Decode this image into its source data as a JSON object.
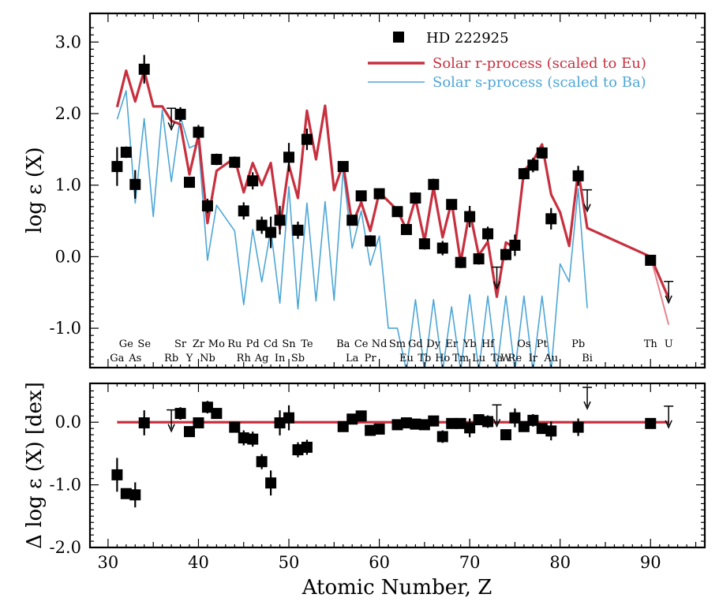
{
  "chart_data": [
    {
      "type": "scatter",
      "panel": "top",
      "ylabel": "log ε (X)",
      "xlim": [
        28,
        96
      ],
      "ylim": [
        -1.55,
        3.4
      ],
      "yticks": [
        3.0,
        2.0,
        1.0,
        0.0,
        -1.0
      ],
      "ytick_labels": [
        "3.0",
        "2.0",
        "1.0",
        "0.0",
        "-1.0"
      ],
      "legend": {
        "placement": "top-right",
        "entries": [
          {
            "label": "HD 222925",
            "color": "#000000",
            "marker": "square"
          },
          {
            "label": "Solar r-process (scaled to Eu)",
            "color": "#c7303f",
            "marker": "line-thick"
          },
          {
            "label": "Solar s-process (scaled to Ba)",
            "color": "#4ea6d6",
            "marker": "line-thin"
          }
        ]
      },
      "element_labels_top": [
        {
          "z": 32,
          "label": "Ge"
        },
        {
          "z": 34,
          "label": "Se"
        },
        {
          "z": 38,
          "label": "Sr"
        },
        {
          "z": 40,
          "label": "Zr"
        },
        {
          "z": 42,
          "label": "Mo"
        },
        {
          "z": 44,
          "label": "Ru"
        },
        {
          "z": 46,
          "label": "Pd"
        },
        {
          "z": 48,
          "label": "Cd"
        },
        {
          "z": 50,
          "label": "Sn"
        },
        {
          "z": 52,
          "label": "Te"
        },
        {
          "z": 56,
          "label": "Ba"
        },
        {
          "z": 58,
          "label": "Ce"
        },
        {
          "z": 60,
          "label": "Nd"
        },
        {
          "z": 62,
          "label": "Sm"
        },
        {
          "z": 64,
          "label": "Gd"
        },
        {
          "z": 66,
          "label": "Dy"
        },
        {
          "z": 68,
          "label": "Er"
        },
        {
          "z": 70,
          "label": "Yb"
        },
        {
          "z": 72,
          "label": "Hf"
        },
        {
          "z": 76,
          "label": "Os"
        },
        {
          "z": 78,
          "label": "Pt"
        },
        {
          "z": 82,
          "label": "Pb"
        },
        {
          "z": 90,
          "label": "Th"
        },
        {
          "z": 92,
          "label": "U"
        }
      ],
      "element_labels_bottom": [
        {
          "z": 31,
          "label": "Ga"
        },
        {
          "z": 33,
          "label": "As"
        },
        {
          "z": 37,
          "label": "Rb"
        },
        {
          "z": 39,
          "label": "Y"
        },
        {
          "z": 41,
          "label": "Nb"
        },
        {
          "z": 45,
          "label": "Rh"
        },
        {
          "z": 47,
          "label": "Ag"
        },
        {
          "z": 49,
          "label": "In"
        },
        {
          "z": 51,
          "label": "Sb"
        },
        {
          "z": 57,
          "label": "La"
        },
        {
          "z": 59,
          "label": "Pr"
        },
        {
          "z": 63,
          "label": "Eu"
        },
        {
          "z": 65,
          "label": "Tb"
        },
        {
          "z": 67,
          "label": "Ho"
        },
        {
          "z": 69,
          "label": "Tm"
        },
        {
          "z": 71,
          "label": "Lu"
        },
        {
          "z": 73,
          "label": "Ta"
        },
        {
          "z": 74,
          "label": "W"
        },
        {
          "z": 75,
          "label": "Re"
        },
        {
          "z": 77,
          "label": "Ir"
        },
        {
          "z": 79,
          "label": "Au"
        },
        {
          "z": 83,
          "label": "Bi"
        }
      ],
      "observed": [
        {
          "z": 31,
          "y": 1.26,
          "err": 0.27
        },
        {
          "z": 32,
          "y": 1.46,
          "err": 0.08
        },
        {
          "z": 33,
          "y": 1.01,
          "err": 0.2
        },
        {
          "z": 34,
          "y": 2.62,
          "err": 0.2
        },
        {
          "z": 37,
          "y": 1.92,
          "limit": "upper"
        },
        {
          "z": 38,
          "y": 1.99,
          "err": 0.1
        },
        {
          "z": 39,
          "y": 1.04,
          "err": 0.07
        },
        {
          "z": 40,
          "y": 1.74,
          "err": 0.1
        },
        {
          "z": 41,
          "y": 0.71,
          "err": 0.1
        },
        {
          "z": 42,
          "y": 1.36,
          "err": 0.08
        },
        {
          "z": 44,
          "y": 1.32,
          "err": 0.08
        },
        {
          "z": 45,
          "y": 0.64,
          "err": 0.12
        },
        {
          "z": 46,
          "y": 1.06,
          "err": 0.12
        },
        {
          "z": 47,
          "y": 0.44,
          "err": 0.12
        },
        {
          "z": 48,
          "y": 0.34,
          "err": 0.22
        },
        {
          "z": 49,
          "y": 0.51,
          "err": 0.2
        },
        {
          "z": 50,
          "y": 1.39,
          "err": 0.2
        },
        {
          "z": 51,
          "y": 0.37,
          "err": 0.12
        },
        {
          "z": 52,
          "y": 1.64,
          "err": 0.15
        },
        {
          "z": 56,
          "y": 1.26,
          "err": 0.06
        },
        {
          "z": 57,
          "y": 0.51,
          "err": 0.06
        },
        {
          "z": 58,
          "y": 0.85,
          "err": 0.06
        },
        {
          "z": 59,
          "y": 0.22,
          "err": 0.08
        },
        {
          "z": 60,
          "y": 0.88,
          "err": 0.06
        },
        {
          "z": 62,
          "y": 0.63,
          "err": 0.06
        },
        {
          "z": 63,
          "y": 0.38,
          "err": 0.06
        },
        {
          "z": 64,
          "y": 0.82,
          "err": 0.08
        },
        {
          "z": 65,
          "y": 0.18,
          "err": 0.08
        },
        {
          "z": 66,
          "y": 1.01,
          "err": 0.08
        },
        {
          "z": 67,
          "y": 0.12,
          "err": 0.1
        },
        {
          "z": 68,
          "y": 0.73,
          "err": 0.06
        },
        {
          "z": 69,
          "y": -0.08,
          "err": 0.08
        },
        {
          "z": 70,
          "y": 0.56,
          "err": 0.15
        },
        {
          "z": 71,
          "y": -0.03,
          "err": 0.08
        },
        {
          "z": 72,
          "y": 0.32,
          "err": 0.1
        },
        {
          "z": 73,
          "y": -0.3,
          "limit": "upper"
        },
        {
          "z": 74,
          "y": 0.03,
          "err": 0.08
        },
        {
          "z": 75,
          "y": 0.16,
          "err": 0.15
        },
        {
          "z": 76,
          "y": 1.16,
          "err": 0.08
        },
        {
          "z": 77,
          "y": 1.28,
          "err": 0.1
        },
        {
          "z": 78,
          "y": 1.45,
          "err": 0.08
        },
        {
          "z": 79,
          "y": 0.53,
          "err": 0.15
        },
        {
          "z": 82,
          "y": 1.13,
          "err": 0.14
        },
        {
          "z": 83,
          "y": 0.78,
          "limit": "upper"
        },
        {
          "z": 90,
          "y": -0.05,
          "err": 0.07
        },
        {
          "z": 92,
          "y": -0.5,
          "limit": "upper"
        }
      ],
      "solar_r": {
        "z": [
          31,
          32,
          33,
          34,
          35,
          36,
          37,
          38,
          39,
          40,
          41,
          42,
          44,
          45,
          46,
          47,
          48,
          49,
          50,
          51,
          52,
          53,
          54,
          55,
          56,
          57,
          58,
          59,
          60,
          62,
          63,
          64,
          65,
          66,
          67,
          68,
          69,
          70,
          71,
          72,
          73,
          74,
          75,
          76,
          77,
          78,
          79,
          80,
          81,
          82,
          83,
          90,
          92
        ],
        "y": [
          2.09,
          2.6,
          2.17,
          2.6,
          2.1,
          2.1,
          1.9,
          1.85,
          1.15,
          1.7,
          0.47,
          1.2,
          1.38,
          0.9,
          1.31,
          1.0,
          1.31,
          0.39,
          1.28,
          0.82,
          2.04,
          1.36,
          2.11,
          0.93,
          1.3,
          0.45,
          0.76,
          0.36,
          0.9,
          0.65,
          0.38,
          0.81,
          0.22,
          0.97,
          0.27,
          0.77,
          -0.08,
          0.64,
          0.02,
          0.21,
          -0.56,
          0.2,
          0.12,
          1.2,
          1.34,
          1.57,
          0.87,
          0.62,
          0.15,
          1.2,
          0.4,
          0.0,
          -0.58
        ],
        "extension": {
          "z": [
            90,
            92
          ],
          "y": [
            0.0,
            -0.95
          ]
        }
      },
      "solar_s": {
        "z": [
          31,
          32,
          33,
          34,
          35,
          36,
          37,
          38,
          39,
          40,
          41,
          42,
          44,
          45,
          46,
          47,
          48,
          49,
          50,
          51,
          52,
          53,
          54,
          55,
          56,
          57,
          58,
          59,
          60,
          61,
          62,
          63,
          64,
          65,
          66,
          67,
          68,
          69,
          70,
          71,
          72,
          73,
          74,
          75,
          76,
          77,
          78,
          79,
          80,
          81,
          82,
          83
        ],
        "y": [
          1.92,
          2.32,
          0.75,
          1.93,
          0.56,
          2.05,
          1.05,
          1.96,
          1.52,
          1.58,
          -0.05,
          0.72,
          0.36,
          -0.67,
          0.38,
          -0.35,
          0.38,
          -0.65,
          0.98,
          -0.73,
          0.75,
          -0.62,
          0.77,
          -0.61,
          1.21,
          0.12,
          0.64,
          -0.12,
          0.29,
          -1.0,
          -1.0,
          -1.6,
          -0.6,
          -1.6,
          -0.6,
          -1.6,
          -0.7,
          -1.6,
          -0.53,
          -1.6,
          -0.55,
          -1.6,
          -0.55,
          -1.6,
          -0.55,
          -1.6,
          -0.55,
          -1.6,
          -0.1,
          -0.35,
          0.95,
          -0.72
        ]
      }
    },
    {
      "type": "scatter",
      "panel": "bottom",
      "xlabel": "Atomic Number, Z",
      "ylabel": "Δ log ε (X) [dex]",
      "xlim": [
        28,
        96
      ],
      "ylim": [
        -2.0,
        0.62
      ],
      "yticks": [
        0.0,
        -1.0,
        -2.0
      ],
      "ytick_labels": [
        "0.0",
        "-1.0",
        "-2.0"
      ],
      "xticks": [
        30,
        40,
        50,
        60,
        70,
        80,
        90
      ],
      "xtick_labels": [
        "30",
        "40",
        "50",
        "60",
        "70",
        "80",
        "90"
      ],
      "reference_line": {
        "y": 0.0,
        "x": [
          31,
          92
        ],
        "color": "#c7303f"
      },
      "residuals": [
        {
          "z": 31,
          "y": -0.84,
          "err": 0.27
        },
        {
          "z": 32,
          "y": -1.14,
          "err": 0.08
        },
        {
          "z": 33,
          "y": -1.16,
          "err": 0.2
        },
        {
          "z": 34,
          "y": -0.01,
          "err": 0.2
        },
        {
          "z": 37,
          "y": 0.02,
          "limit": "upper"
        },
        {
          "z": 38,
          "y": 0.14,
          "err": 0.1
        },
        {
          "z": 39,
          "y": -0.15,
          "err": 0.08
        },
        {
          "z": 40,
          "y": -0.01,
          "err": 0.08
        },
        {
          "z": 41,
          "y": 0.24,
          "err": 0.1
        },
        {
          "z": 42,
          "y": 0.14,
          "err": 0.08
        },
        {
          "z": 44,
          "y": -0.08,
          "err": 0.08
        },
        {
          "z": 45,
          "y": -0.25,
          "err": 0.12
        },
        {
          "z": 46,
          "y": -0.27,
          "err": 0.12
        },
        {
          "z": 47,
          "y": -0.63,
          "err": 0.12
        },
        {
          "z": 48,
          "y": -0.97,
          "err": 0.2
        },
        {
          "z": 49,
          "y": -0.01,
          "err": 0.2
        },
        {
          "z": 50,
          "y": 0.07,
          "err": 0.2
        },
        {
          "z": 51,
          "y": -0.44,
          "err": 0.12
        },
        {
          "z": 52,
          "y": -0.4,
          "err": 0.12
        },
        {
          "z": 56,
          "y": -0.07,
          "err": 0.06
        },
        {
          "z": 57,
          "y": 0.05,
          "err": 0.06
        },
        {
          "z": 58,
          "y": 0.1,
          "err": 0.06
        },
        {
          "z": 59,
          "y": -0.13,
          "err": 0.08
        },
        {
          "z": 60,
          "y": -0.11,
          "err": 0.06
        },
        {
          "z": 62,
          "y": -0.04,
          "err": 0.06
        },
        {
          "z": 63,
          "y": -0.01,
          "err": 0.06
        },
        {
          "z": 64,
          "y": -0.03,
          "err": 0.08
        },
        {
          "z": 65,
          "y": -0.04,
          "err": 0.08
        },
        {
          "z": 66,
          "y": 0.02,
          "err": 0.08
        },
        {
          "z": 67,
          "y": -0.23,
          "err": 0.1
        },
        {
          "z": 68,
          "y": -0.02,
          "err": 0.06
        },
        {
          "z": 69,
          "y": -0.02,
          "err": 0.08
        },
        {
          "z": 70,
          "y": -0.09,
          "err": 0.15
        },
        {
          "z": 71,
          "y": 0.04,
          "err": 0.08
        },
        {
          "z": 72,
          "y": 0.01,
          "err": 0.1
        },
        {
          "z": 73,
          "y": 0.1,
          "limit": "upper"
        },
        {
          "z": 74,
          "y": -0.2,
          "err": 0.08
        },
        {
          "z": 75,
          "y": 0.07,
          "err": 0.15
        },
        {
          "z": 76,
          "y": -0.07,
          "err": 0.08
        },
        {
          "z": 77,
          "y": 0.03,
          "err": 0.1
        },
        {
          "z": 78,
          "y": -0.1,
          "err": 0.08
        },
        {
          "z": 79,
          "y": -0.14,
          "err": 0.15
        },
        {
          "z": 82,
          "y": -0.08,
          "err": 0.14
        },
        {
          "z": 83,
          "y": 0.38,
          "limit": "upper"
        },
        {
          "z": 90,
          "y": -0.02,
          "err": 0.07
        },
        {
          "z": 92,
          "y": 0.08,
          "limit": "upper"
        }
      ]
    }
  ]
}
